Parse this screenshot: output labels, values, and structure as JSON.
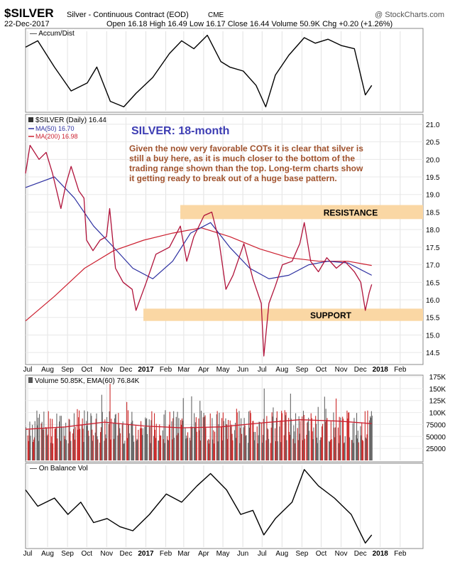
{
  "header": {
    "symbol": "$SILVER",
    "name": "Silver - Continuous Contract (EOD)",
    "exchange": "CME",
    "watermark": "@ StockCharts.com",
    "date": "22-Dec-2017",
    "quote": {
      "open_label": "Open",
      "open": "16.18",
      "high_label": "High",
      "high": "16.49",
      "low_label": "Low",
      "low": "16.17",
      "close_label": "Close",
      "close": "16.44",
      "volume_label": "Volume",
      "volume": "50.9K",
      "chg_label": "Chg",
      "chg": "+0.20 (+1.26%)"
    }
  },
  "panels": {
    "accum_label": "Accum/Dist",
    "obv_label": "On Balance Vol",
    "price_legend": "$SILVER (Daily) 16.44",
    "ma50_legend": "MA(50) 16.70",
    "ma200_legend": "MA(200) 16.98",
    "volume_legend": "Volume 50.85K, EMA(60) 76.84K"
  },
  "annotations": {
    "title": "SILVER: 18-month",
    "commentary": [
      "Given the now very favorable COTs it is clear that silver is",
      "still a buy here, as it is much closer to the bottom of the",
      "trading range shown than the top. Long-term charts show",
      "it getting ready to break out of a huge base pattern."
    ],
    "resistance_label": "RESISTANCE",
    "support_label": "SUPPORT"
  },
  "x_axis": {
    "months": [
      "Jul",
      "Aug",
      "Sep",
      "Oct",
      "Nov",
      "Dec",
      "2017",
      "Feb",
      "Mar",
      "Apr",
      "May",
      "Jun",
      "Jul",
      "Aug",
      "Sep",
      "Oct",
      "Nov",
      "Dec",
      "2018",
      "Feb"
    ],
    "bold_labels": [
      "2017",
      "2018"
    ]
  },
  "colors": {
    "price": "#b0123a",
    "ma50": "#2c2fa0",
    "ma200": "#cc1f2f",
    "band": "#fad7a4",
    "title": "#3d3db3",
    "commentary": "#a0522d",
    "volume_bar": "#cc2a2a",
    "volume_bar_alt": "#666666",
    "volume_ema": "#cc1f2f"
  },
  "chart_data": [
    {
      "type": "line",
      "name": "Accum/Dist",
      "x": [
        "2016-07-01",
        "2016-07-20",
        "2016-08-15",
        "2016-09-10",
        "2016-10-05",
        "2016-10-20",
        "2016-11-10",
        "2016-12-01",
        "2016-12-20",
        "2017-01-15",
        "2017-02-10",
        "2017-03-01",
        "2017-03-20",
        "2017-04-10",
        "2017-05-01",
        "2017-05-15",
        "2017-06-05",
        "2017-06-25",
        "2017-07-10",
        "2017-07-25",
        "2017-08-15",
        "2017-09-08",
        "2017-09-25",
        "2017-10-15",
        "2017-11-05",
        "2017-11-25",
        "2017-12-12",
        "2017-12-22"
      ],
      "y": [
        0.8,
        0.88,
        0.55,
        0.25,
        0.35,
        0.55,
        0.12,
        0.05,
        0.22,
        0.42,
        0.72,
        0.88,
        0.78,
        0.95,
        0.62,
        0.55,
        0.5,
        0.32,
        0.05,
        0.45,
        0.7,
        0.92,
        0.85,
        0.9,
        0.82,
        0.78,
        0.2,
        0.32
      ],
      "ylim": [
        0,
        1
      ]
    },
    {
      "type": "line",
      "title": "SILVER: 18-month",
      "ylim": [
        14.2,
        21.2
      ],
      "yticks": [
        14.5,
        15.0,
        15.5,
        16.0,
        16.5,
        17.0,
        17.5,
        18.0,
        18.5,
        19.0,
        19.5,
        20.0,
        20.5,
        21.0
      ],
      "series": [
        {
          "name": "$SILVER (Daily) 16.44",
          "x": [
            "2016-07-01",
            "2016-07-08",
            "2016-07-22",
            "2016-08-02",
            "2016-08-12",
            "2016-08-25",
            "2016-09-02",
            "2016-09-10",
            "2016-09-22",
            "2016-09-30",
            "2016-10-04",
            "2016-10-14",
            "2016-10-25",
            "2016-11-04",
            "2016-11-09",
            "2016-11-18",
            "2016-11-30",
            "2016-12-14",
            "2016-12-20",
            "2017-01-05",
            "2017-01-20",
            "2017-02-10",
            "2017-02-27",
            "2017-03-09",
            "2017-03-20",
            "2017-04-05",
            "2017-04-17",
            "2017-04-28",
            "2017-05-09",
            "2017-05-20",
            "2017-06-06",
            "2017-06-20",
            "2017-07-03",
            "2017-07-07",
            "2017-07-15",
            "2017-07-25",
            "2017-08-05",
            "2017-08-20",
            "2017-09-01",
            "2017-09-08",
            "2017-09-18",
            "2017-09-30",
            "2017-10-13",
            "2017-10-28",
            "2017-11-10",
            "2017-11-25",
            "2017-12-05",
            "2017-12-12",
            "2017-12-18",
            "2017-12-22"
          ],
          "y": [
            19.6,
            20.4,
            20.0,
            20.2,
            19.6,
            18.6,
            19.3,
            19.8,
            19.1,
            18.9,
            17.7,
            17.4,
            17.7,
            17.8,
            18.6,
            16.9,
            16.5,
            16.3,
            15.7,
            16.5,
            17.3,
            17.5,
            18.1,
            17.1,
            17.8,
            18.4,
            18.5,
            17.7,
            16.3,
            16.7,
            17.6,
            16.6,
            15.9,
            14.4,
            15.9,
            16.4,
            17.0,
            17.1,
            17.6,
            18.2,
            17.1,
            16.8,
            17.2,
            16.9,
            17.1,
            16.8,
            16.5,
            15.7,
            16.2,
            16.44
          ]
        },
        {
          "name": "MA(50) 16.70",
          "x": [
            "2016-07-01",
            "2016-08-15",
            "2016-09-15",
            "2016-10-15",
            "2016-11-15",
            "2016-12-15",
            "2017-01-15",
            "2017-02-15",
            "2017-03-15",
            "2017-04-15",
            "2017-05-15",
            "2017-06-15",
            "2017-07-15",
            "2017-08-15",
            "2017-09-15",
            "2017-10-15",
            "2017-11-15",
            "2017-12-22"
          ],
          "y": [
            19.2,
            19.5,
            18.9,
            18.1,
            17.5,
            16.9,
            16.6,
            17.1,
            17.9,
            18.2,
            17.5,
            16.9,
            16.6,
            16.7,
            17.0,
            17.1,
            17.05,
            16.7
          ]
        },
        {
          "name": "MA(200) 16.98",
          "x": [
            "2016-07-01",
            "2016-08-15",
            "2016-10-01",
            "2016-11-15",
            "2017-01-01",
            "2017-02-15",
            "2017-04-01",
            "2017-05-15",
            "2017-07-01",
            "2017-08-15",
            "2017-10-01",
            "2017-11-15",
            "2017-12-22"
          ],
          "y": [
            15.4,
            16.1,
            16.9,
            17.4,
            17.7,
            17.9,
            18.05,
            17.8,
            17.45,
            17.2,
            17.1,
            17.1,
            16.98
          ]
        }
      ],
      "bands": [
        {
          "label": "RESISTANCE",
          "y0": 18.3,
          "y1": 18.7
        },
        {
          "label": "SUPPORT",
          "y0": 15.4,
          "y1": 15.75
        }
      ]
    },
    {
      "type": "bar",
      "name": "Volume 50.85K, EMA(60) 76.84K",
      "ylim": [
        0,
        175000
      ],
      "yticks": [
        25000,
        50000,
        75000,
        100000,
        125000,
        150000,
        175000
      ],
      "ytick_labels": [
        "25000",
        "50000",
        "75000",
        "100K",
        "125K",
        "150K",
        "175K"
      ],
      "ema": {
        "x": [
          "2016-07-01",
          "2016-09-01",
          "2016-11-01",
          "2017-01-01",
          "2017-03-01",
          "2017-05-01",
          "2017-07-01",
          "2017-09-01",
          "2017-11-01",
          "2017-12-22"
        ],
        "y": [
          65000,
          70000,
          80000,
          72000,
          68000,
          70000,
          78000,
          85000,
          82000,
          76840
        ]
      }
    },
    {
      "type": "line",
      "name": "On Balance Vol",
      "x": [
        "2016-07-01",
        "2016-07-20",
        "2016-08-15",
        "2016-09-05",
        "2016-09-25",
        "2016-10-15",
        "2016-11-05",
        "2016-11-25",
        "2016-12-15",
        "2017-01-10",
        "2017-02-05",
        "2017-03-01",
        "2017-03-25",
        "2017-04-15",
        "2017-05-10",
        "2017-06-01",
        "2017-06-20",
        "2017-07-07",
        "2017-07-25",
        "2017-08-20",
        "2017-09-08",
        "2017-09-30",
        "2017-10-25",
        "2017-11-20",
        "2017-12-12",
        "2017-12-22"
      ],
      "y": [
        0.7,
        0.5,
        0.6,
        0.4,
        0.55,
        0.3,
        0.35,
        0.25,
        0.2,
        0.4,
        0.65,
        0.55,
        0.75,
        0.9,
        0.7,
        0.4,
        0.45,
        0.15,
        0.35,
        0.55,
        0.95,
        0.75,
        0.6,
        0.4,
        0.05,
        0.15
      ],
      "ylim": [
        0,
        1
      ]
    }
  ]
}
